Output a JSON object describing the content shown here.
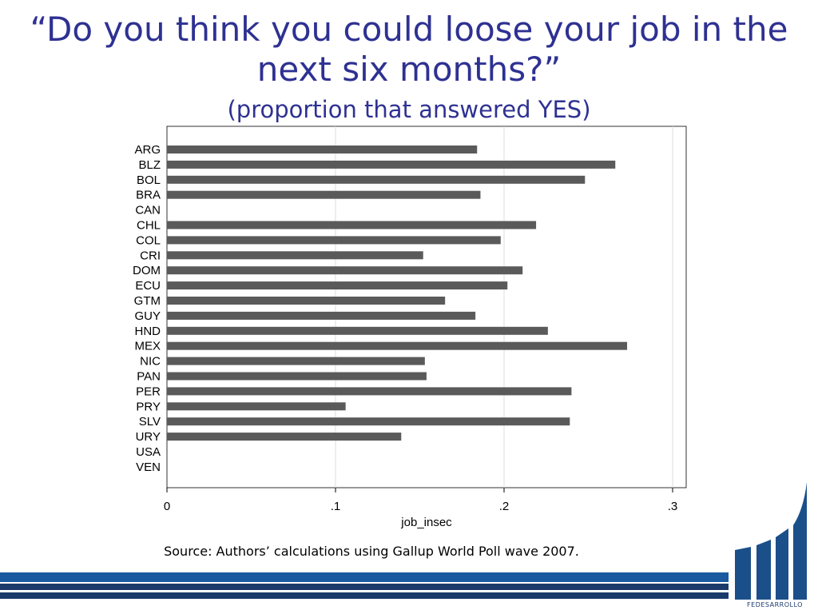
{
  "title": {
    "main": "“Do you think you could loose your job in the next six months?”",
    "sub": "(proportion that answered YES)"
  },
  "chart_data": {
    "type": "bar",
    "orientation": "horizontal",
    "categories": [
      "ARG",
      "BLZ",
      "BOL",
      "BRA",
      "CAN",
      "CHL",
      "COL",
      "CRI",
      "DOM",
      "ECU",
      "GTM",
      "GUY",
      "HND",
      "MEX",
      "NIC",
      "PAN",
      "PER",
      "PRY",
      "SLV",
      "URY",
      "USA",
      "VEN"
    ],
    "values": [
      0.184,
      0.266,
      0.248,
      0.186,
      null,
      0.219,
      0.198,
      0.152,
      0.211,
      0.202,
      0.165,
      0.183,
      0.226,
      0.273,
      0.153,
      0.154,
      0.24,
      0.106,
      0.239,
      0.139,
      null,
      null
    ],
    "xlabel": "job_insec",
    "xlim": [
      0,
      0.31
    ],
    "xticks": [
      0,
      0.1,
      0.2,
      0.3
    ],
    "xtick_labels": [
      "0",
      ".1",
      ".2",
      ".3"
    ],
    "grid": true,
    "bar_color": "#5a5a5a"
  },
  "source": "Source: Authors’ calculations using Gallup World Poll wave 2007.",
  "logo": {
    "text": "FEDESARROLLO",
    "color": "#1a4f8a"
  },
  "bands": {
    "blue": "#1a5aa0",
    "navy": "#1a3a6b"
  }
}
